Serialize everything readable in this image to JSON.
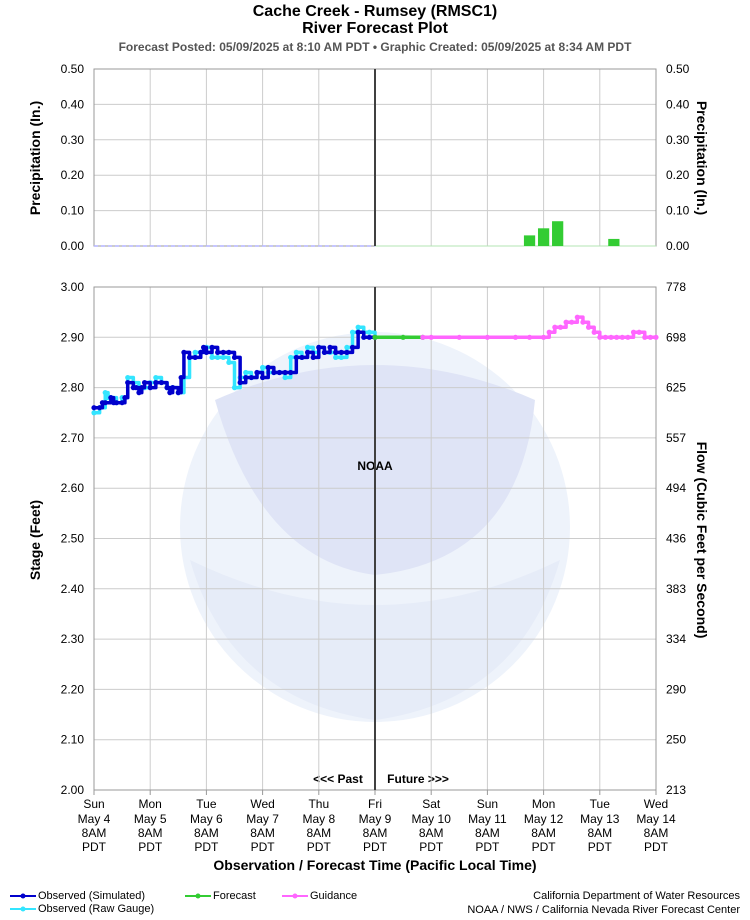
{
  "title": "Cache Creek - Rumsey (RMSC1)",
  "subtitle_line": "River Forecast Plot",
  "posted": "Forecast Posted: 05/09/2025 at 8:10 AM PDT  •  Graphic Created: 05/09/2025 at 8:34 AM PDT",
  "watermark": {
    "past": "<<< Past",
    "future": "Future >>>",
    "noaa_text": "NOAA"
  },
  "colors": {
    "simulated": "#0000cc",
    "raw": "#33e5ff",
    "forecast": "#33cc33",
    "guidance": "#ff66ff",
    "precip_forecast": "#33cc33",
    "precip_obs": "#b3b3ff",
    "now_line": "#404040"
  },
  "chart_data": [
    {
      "type": "bar",
      "ylabel": "Precipitation (In.)",
      "ylabel_right": "Precipitation (In.)",
      "ylim": [
        0,
        0.5
      ],
      "yticks": [
        "0.50",
        "0.40",
        "0.30",
        "0.20",
        "0.10",
        "0.00"
      ],
      "grid": true,
      "observed_precip": {
        "name": "Observed",
        "x_range_days": [
          0,
          5
        ],
        "value": 0.0
      },
      "forecast_precip": {
        "name": "Forecast",
        "x_days": [
          7.75,
          8.0,
          8.25,
          9.25
        ],
        "values": [
          0.03,
          0.05,
          0.07,
          0.02
        ]
      }
    },
    {
      "type": "line",
      "xlabel": "Observation / Forecast Time (Pacific Local Time)",
      "ylabel": "Stage (Feet)",
      "ylabel_right": "Flow (Cubic Feet per Second)",
      "ylim": [
        2.0,
        3.0
      ],
      "yticks": [
        "3.00",
        "2.90",
        "2.80",
        "2.70",
        "2.60",
        "2.50",
        "2.40",
        "2.30",
        "2.20",
        "2.10",
        "2.00"
      ],
      "yticks_right": [
        "778",
        "698",
        "625",
        "557",
        "494",
        "436",
        "383",
        "334",
        "290",
        "250",
        "213"
      ],
      "grid": true,
      "now_day": 5,
      "xticks": [
        {
          "day": "Sun",
          "date": "May 4",
          "time": "8AM",
          "tz": "PDT"
        },
        {
          "day": "Mon",
          "date": "May 5",
          "time": "8AM",
          "tz": "PDT"
        },
        {
          "day": "Tue",
          "date": "May 6",
          "time": "8AM",
          "tz": "PDT"
        },
        {
          "day": "Wed",
          "date": "May 7",
          "time": "8AM",
          "tz": "PDT"
        },
        {
          "day": "Thu",
          "date": "May 8",
          "time": "8AM",
          "tz": "PDT"
        },
        {
          "day": "Fri",
          "date": "May 9",
          "time": "8AM",
          "tz": "PDT"
        },
        {
          "day": "Sat",
          "date": "May 10",
          "time": "8AM",
          "tz": "PDT"
        },
        {
          "day": "Sun",
          "date": "May 11",
          "time": "8AM",
          "tz": "PDT"
        },
        {
          "day": "Mon",
          "date": "May 12",
          "time": "8AM",
          "tz": "PDT"
        },
        {
          "day": "Tue",
          "date": "May 13",
          "time": "8AM",
          "tz": "PDT"
        },
        {
          "day": "Wed",
          "date": "May 14",
          "time": "8AM",
          "tz": "PDT"
        }
      ],
      "series": [
        {
          "name": "Observed (Raw Gauge)",
          "x_days": [
            0.0,
            0.1,
            0.2,
            0.25,
            0.3,
            0.4,
            0.5,
            0.6,
            0.7,
            0.8,
            0.9,
            1.0,
            1.1,
            1.2,
            1.3,
            1.4,
            1.5,
            1.6,
            1.7,
            1.8,
            1.9,
            2.0,
            2.1,
            2.2,
            2.3,
            2.4,
            2.5,
            2.6,
            2.7,
            2.8,
            2.9,
            3.0,
            3.1,
            3.2,
            3.3,
            3.4,
            3.5,
            3.6,
            3.7,
            3.8,
            3.9,
            4.0,
            4.1,
            4.2,
            4.3,
            4.4,
            4.5,
            4.6,
            4.7,
            4.8,
            4.9,
            5.0
          ],
          "values": [
            2.75,
            2.76,
            2.79,
            2.78,
            2.78,
            2.77,
            2.78,
            2.82,
            2.81,
            2.8,
            2.8,
            2.81,
            2.82,
            2.81,
            2.8,
            2.8,
            2.79,
            2.82,
            2.86,
            2.87,
            2.87,
            2.88,
            2.86,
            2.86,
            2.86,
            2.85,
            2.8,
            2.82,
            2.83,
            2.82,
            2.83,
            2.84,
            2.83,
            2.83,
            2.83,
            2.82,
            2.86,
            2.87,
            2.86,
            2.88,
            2.87,
            2.88,
            2.87,
            2.87,
            2.86,
            2.86,
            2.88,
            2.91,
            2.92,
            2.91,
            2.91,
            2.9
          ]
        },
        {
          "name": "Observed (Simulated)",
          "x_days": [
            0.0,
            0.1,
            0.15,
            0.2,
            0.3,
            0.35,
            0.4,
            0.5,
            0.55,
            0.6,
            0.7,
            0.75,
            0.8,
            0.85,
            0.9,
            1.0,
            1.1,
            1.2,
            1.3,
            1.35,
            1.4,
            1.5,
            1.55,
            1.6,
            1.7,
            1.8,
            1.9,
            1.95,
            2.0,
            2.1,
            2.2,
            2.3,
            2.4,
            2.5,
            2.6,
            2.7,
            2.8,
            2.9,
            3.0,
            3.1,
            3.2,
            3.3,
            3.4,
            3.5,
            3.6,
            3.7,
            3.8,
            3.9,
            4.0,
            4.1,
            4.2,
            4.3,
            4.4,
            4.5,
            4.6,
            4.7,
            4.8,
            4.9,
            5.0
          ],
          "values": [
            2.76,
            2.76,
            2.77,
            2.77,
            2.78,
            2.77,
            2.77,
            2.77,
            2.78,
            2.81,
            2.8,
            2.8,
            2.79,
            2.8,
            2.81,
            2.8,
            2.81,
            2.81,
            2.8,
            2.79,
            2.8,
            2.79,
            2.82,
            2.87,
            2.86,
            2.86,
            2.87,
            2.88,
            2.87,
            2.88,
            2.87,
            2.87,
            2.87,
            2.86,
            2.81,
            2.82,
            2.82,
            2.83,
            2.82,
            2.84,
            2.83,
            2.83,
            2.83,
            2.83,
            2.86,
            2.86,
            2.87,
            2.86,
            2.88,
            2.87,
            2.88,
            2.87,
            2.87,
            2.87,
            2.88,
            2.91,
            2.9,
            2.9,
            2.9
          ]
        },
        {
          "name": "Forecast",
          "x_days": [
            5.0,
            5.5,
            5.85
          ],
          "values": [
            2.9,
            2.9,
            2.9
          ]
        },
        {
          "name": "Guidance",
          "x_days": [
            5.85,
            6.0,
            6.5,
            7.0,
            7.5,
            7.75,
            8.0,
            8.1,
            8.2,
            8.3,
            8.4,
            8.5,
            8.6,
            8.7,
            8.8,
            8.9,
            9.0,
            9.1,
            9.2,
            9.3,
            9.4,
            9.5,
            9.6,
            9.7,
            9.8,
            9.9,
            10.0
          ],
          "values": [
            2.9,
            2.9,
            2.9,
            2.9,
            2.9,
            2.9,
            2.9,
            2.91,
            2.92,
            2.92,
            2.93,
            2.93,
            2.94,
            2.93,
            2.92,
            2.91,
            2.9,
            2.9,
            2.9,
            2.9,
            2.9,
            2.9,
            2.91,
            2.91,
            2.9,
            2.9,
            2.9
          ]
        }
      ],
      "legend": {
        "placement": "bottom-left",
        "items": [
          "Observed (Simulated)",
          "Observed (Raw Gauge)",
          "Forecast",
          "Guidance"
        ]
      }
    }
  ],
  "footer": {
    "agency_line1": "California Department of Water Resources",
    "agency_line2": "NOAA / NWS / California Nevada River Forecast Center"
  }
}
